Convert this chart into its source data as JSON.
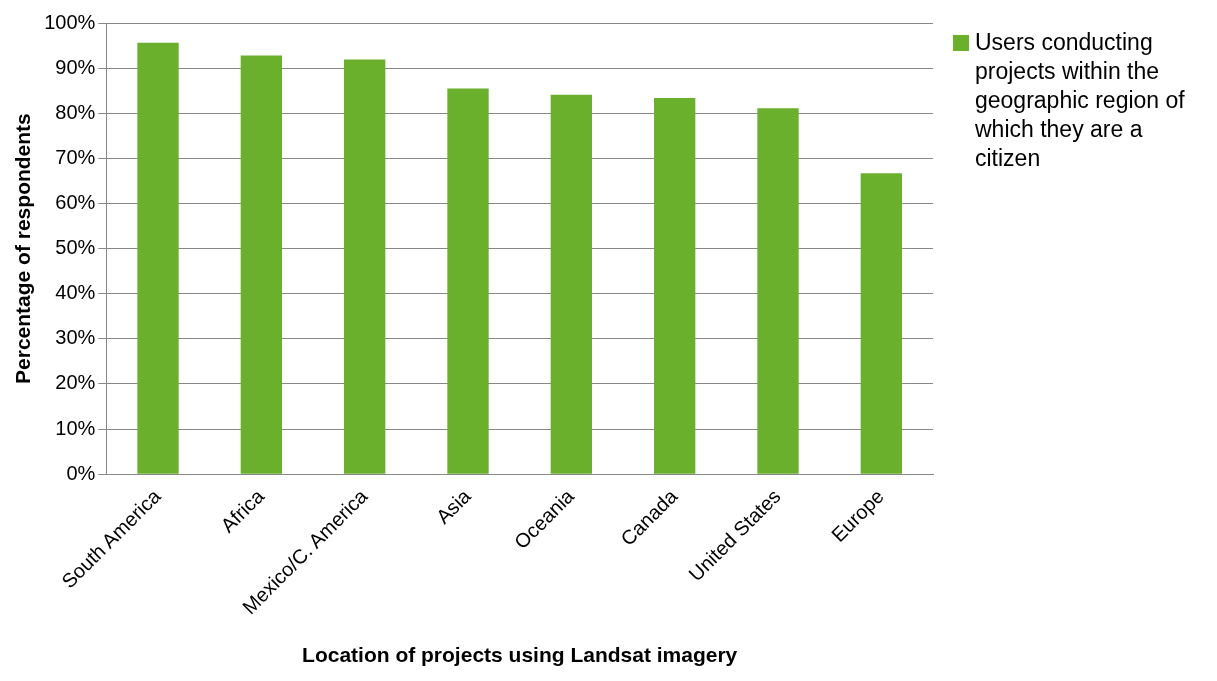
{
  "chart_data": {
    "type": "bar",
    "xlabel": "Location of projects using Landsat imagery",
    "ylabel": "Percentage of respondents",
    "categories": [
      "South America",
      "Africa",
      "Mexico/C. America",
      "Asia",
      "Oceania",
      "Canada",
      "United States",
      "Europe"
    ],
    "series": [
      {
        "name": "Users conducting projects within the geographic region of which they are a citizen",
        "color": "#6ab02c",
        "values": [
          95.6,
          92.8,
          91.9,
          85.5,
          84.1,
          83.4,
          81.1,
          66.7
        ]
      }
    ],
    "ylim": [
      0,
      100
    ],
    "yticks": [
      {
        "value": 0,
        "label": "0%"
      },
      {
        "value": 10,
        "label": "10%"
      },
      {
        "value": 20,
        "label": "20%"
      },
      {
        "value": 30,
        "label": "30%"
      },
      {
        "value": 40,
        "label": "40%"
      },
      {
        "value": 50,
        "label": "50%"
      },
      {
        "value": 60,
        "label": "60%"
      },
      {
        "value": 70,
        "label": "70%"
      },
      {
        "value": 80,
        "label": "80%"
      },
      {
        "value": 90,
        "label": "90%"
      },
      {
        "value": 100,
        "label": "100%"
      }
    ],
    "grid": "y",
    "legend": "top right"
  }
}
